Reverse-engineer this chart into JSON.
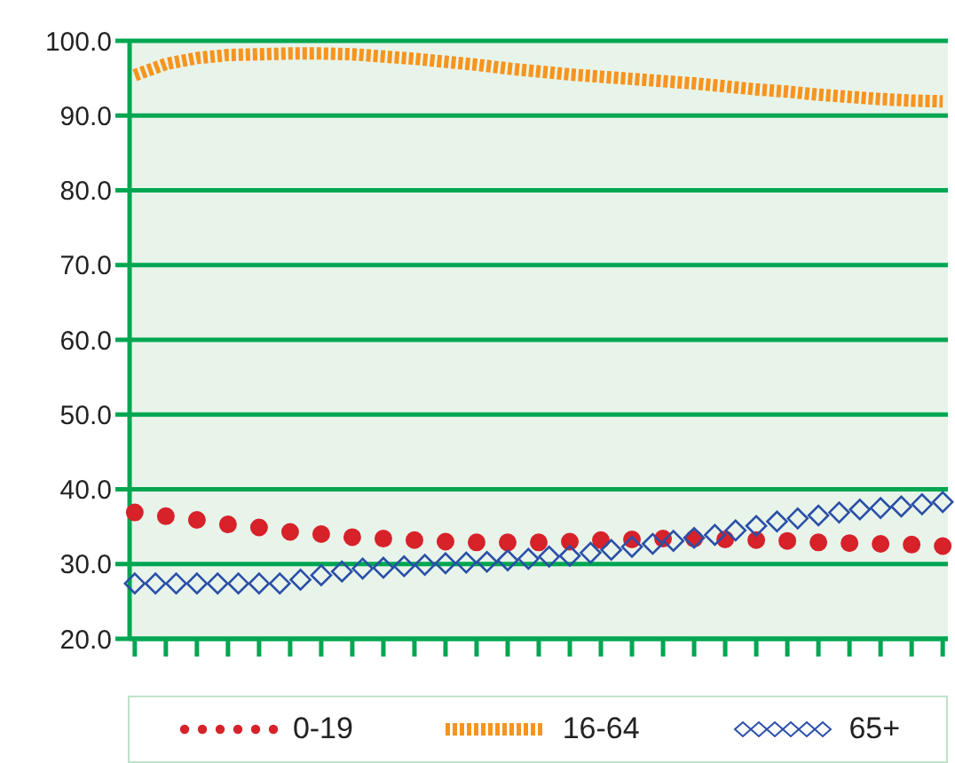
{
  "chart_data": {
    "type": "line",
    "categories": [
      null,
      null,
      null,
      null,
      null,
      null,
      null,
      null,
      null,
      null,
      null,
      null,
      null,
      null,
      null,
      null,
      null,
      null,
      null,
      null,
      null,
      null,
      null,
      null,
      null,
      null,
      null,
      null,
      null,
      null,
      null,
      null,
      null,
      null,
      null,
      null,
      null,
      null,
      null,
      null,
      null,
      null,
      null,
      null,
      null,
      null,
      null,
      null,
      null,
      null,
      null,
      null,
      null,
      null,
      null,
      null,
      null,
      null,
      null,
      null,
      null,
      null,
      null,
      null,
      null,
      null,
      null,
      null,
      null,
      null,
      null,
      null,
      null,
      null,
      null,
      null,
      null,
      null,
      null
    ],
    "series": [
      {
        "name": "0-19",
        "type": "scatter",
        "color": "#d7222a",
        "marker": "circle",
        "values": [
          36.9,
          null,
          null,
          36.4,
          null,
          null,
          35.9,
          null,
          null,
          35.3,
          null,
          null,
          34.9,
          null,
          null,
          34.3,
          null,
          null,
          34.0,
          null,
          null,
          33.6,
          null,
          null,
          33.4,
          null,
          null,
          33.2,
          null,
          null,
          33.0,
          null,
          null,
          32.9,
          null,
          null,
          32.9,
          null,
          null,
          32.9,
          null,
          null,
          33.0,
          null,
          null,
          33.2,
          null,
          null,
          33.3,
          null,
          null,
          33.4,
          null,
          null,
          33.4,
          null,
          null,
          33.3,
          null,
          null,
          33.2,
          null,
          null,
          33.1,
          null,
          null,
          32.9,
          null,
          null,
          32.8,
          null,
          null,
          32.7,
          null,
          null,
          32.6,
          null,
          null,
          32.4
        ]
      },
      {
        "name": "16-64",
        "color": "#f7941d",
        "marker": "none",
        "line_style": "dashed",
        "values": [
          95.4,
          null,
          null,
          96.9,
          null,
          null,
          97.7,
          null,
          null,
          98.1,
          null,
          null,
          98.2,
          null,
          null,
          98.3,
          null,
          null,
          98.3,
          null,
          null,
          98.2,
          null,
          null,
          97.9,
          null,
          null,
          97.6,
          null,
          null,
          97.2,
          null,
          null,
          96.8,
          null,
          null,
          96.3,
          null,
          null,
          95.9,
          null,
          null,
          95.5,
          null,
          null,
          95.2,
          null,
          null,
          94.9,
          null,
          null,
          94.6,
          null,
          null,
          94.3,
          null,
          null,
          93.9,
          null,
          null,
          93.5,
          null,
          null,
          93.2,
          null,
          null,
          92.8,
          null,
          null,
          92.5,
          null,
          null,
          92.2,
          null,
          null,
          92.0,
          null,
          null,
          91.9
        ]
      },
      {
        "name": "65+",
        "type": "scatter",
        "color": "#2a4fa8",
        "marker": "diamond",
        "values": [
          27.4,
          null,
          27.4,
          null,
          27.4,
          null,
          27.4,
          null,
          27.4,
          null,
          27.4,
          null,
          27.4,
          null,
          27.4,
          null,
          27.9,
          null,
          28.5,
          null,
          29.0,
          null,
          29.4,
          null,
          29.5,
          null,
          29.7,
          null,
          29.9,
          null,
          30.1,
          null,
          30.2,
          null,
          30.3,
          null,
          30.5,
          null,
          30.7,
          null,
          31.0,
          null,
          31.1,
          null,
          31.5,
          null,
          31.9,
          null,
          32.3,
          null,
          32.7,
          null,
          33.1,
          null,
          33.5,
          null,
          33.9,
          null,
          34.5,
          null,
          35.1,
          null,
          35.7,
          null,
          36.1,
          null,
          36.5,
          null,
          36.9,
          null,
          37.3,
          null,
          37.5,
          null,
          37.7,
          null,
          38.0,
          null,
          38.3
        ]
      }
    ],
    "ylim": [
      20,
      100
    ],
    "yticks": [
      {
        "value": 20,
        "label": "20.0"
      },
      {
        "value": 30,
        "label": "30.0"
      },
      {
        "value": 40,
        "label": "40.0"
      },
      {
        "value": 50,
        "label": "50.0"
      },
      {
        "value": 60,
        "label": "60.0"
      },
      {
        "value": 70,
        "label": "70.0"
      },
      {
        "value": 80,
        "label": "80.0"
      },
      {
        "value": 90,
        "label": "90.0"
      },
      {
        "value": 100,
        "label": "100.0"
      }
    ],
    "grid": "y",
    "legend": "bottom",
    "tick_labels": "y"
  }
}
